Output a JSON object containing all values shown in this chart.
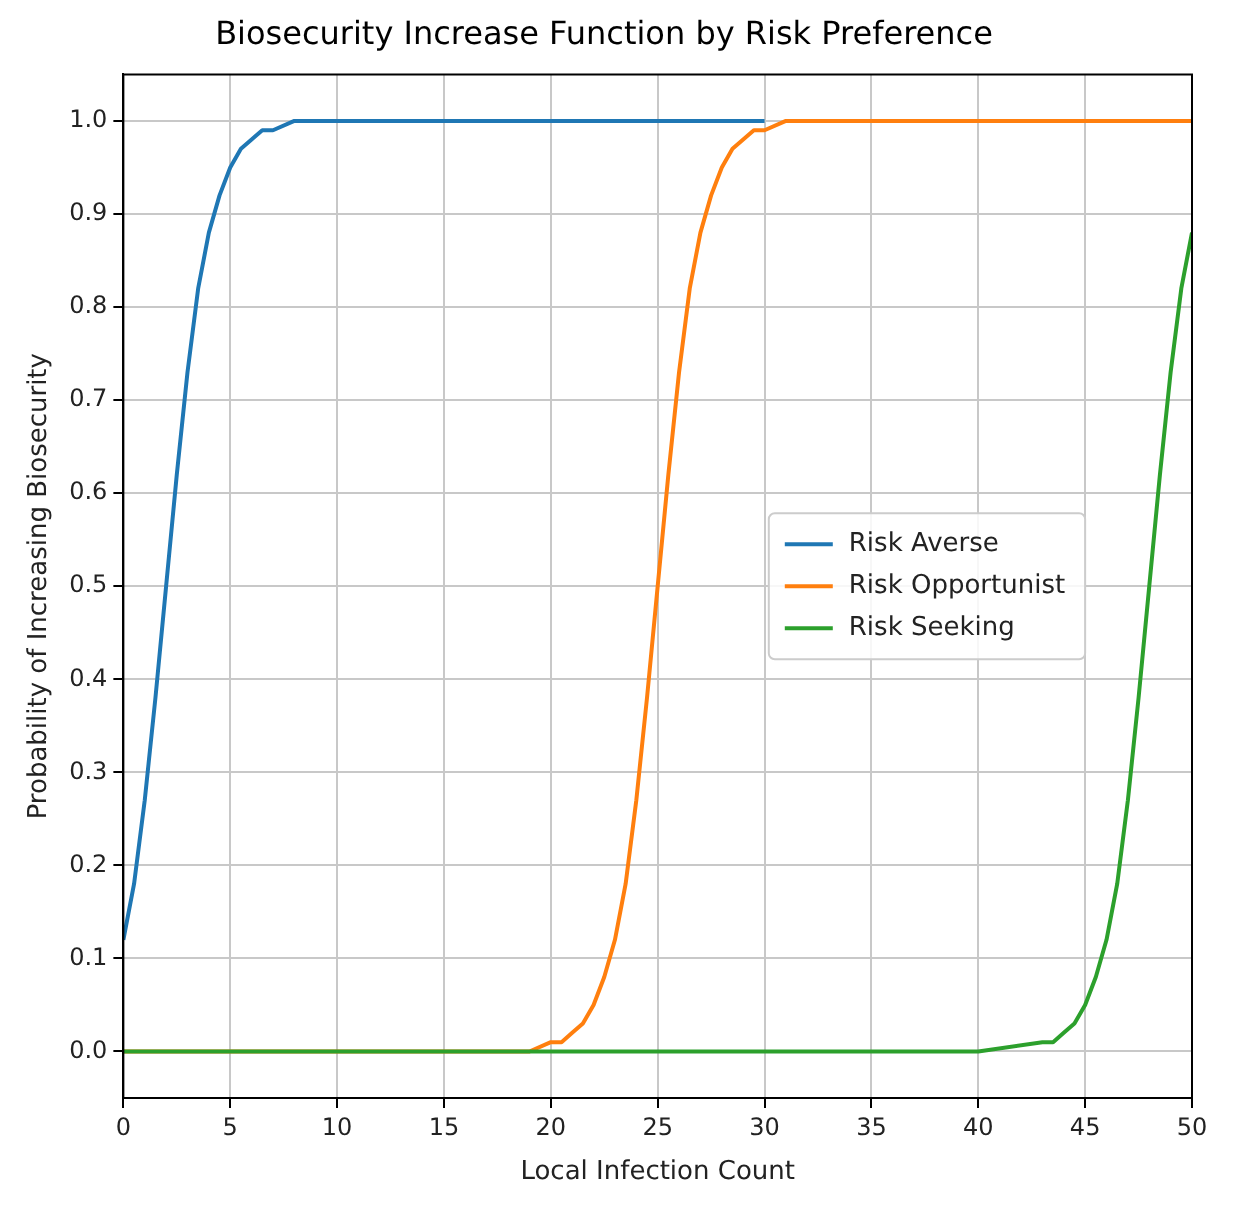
{
  "chart_data": {
    "type": "line",
    "title": "Biosecurity Increase Function by Risk Preference",
    "xlabel": "Local Infection Count",
    "ylabel": "Probability of Increasing Biosecurity",
    "xlim": [
      0,
      50
    ],
    "xticks": [
      0,
      5,
      10,
      15,
      20,
      25,
      30,
      35,
      40,
      45,
      50
    ],
    "ylim": [
      -0.05,
      1.05
    ],
    "yticks": [
      {
        "value": 0,
        "label": "0.0"
      },
      {
        "value": 0.1,
        "label": "0.1"
      },
      {
        "value": 0.2,
        "label": "0.2"
      },
      {
        "value": 0.3,
        "label": "0.3"
      },
      {
        "value": 0.4,
        "label": "0.4"
      },
      {
        "value": 0.5,
        "label": "0.5"
      },
      {
        "value": 0.6,
        "label": "0.6"
      },
      {
        "value": 0.7,
        "label": "0.7"
      },
      {
        "value": 0.8,
        "label": "0.8"
      },
      {
        "value": 0.9,
        "label": "0.9"
      },
      {
        "value": 1,
        "label": "1.0"
      }
    ],
    "grid": true,
    "legend": "right",
    "marker": "none",
    "line_style": "solid",
    "series": [
      {
        "name": "Risk Averse",
        "color": "#1f77b4",
        "x": [
          0,
          0.5,
          1,
          1.5,
          2,
          2.5,
          3,
          3.5,
          4,
          4.5,
          5,
          5.5,
          6,
          6.5,
          7,
          8,
          10,
          30
        ],
        "values": [
          0.12,
          0.18,
          0.27,
          0.38,
          0.5,
          0.62,
          0.73,
          0.82,
          0.88,
          0.92,
          0.95,
          0.97,
          0.98,
          0.99,
          0.99,
          1,
          1,
          1
        ]
      },
      {
        "name": "Risk Opportunist",
        "color": "#ff7f0e",
        "x": [
          0,
          15,
          19,
          20,
          20.5,
          21,
          21.5,
          22,
          22.5,
          23,
          23.5,
          24,
          24.5,
          25,
          25.5,
          26,
          26.5,
          27,
          27.5,
          28,
          28.5,
          29,
          29.5,
          30,
          31,
          32,
          35,
          50
        ],
        "values": [
          0,
          0,
          0,
          0.01,
          0.01,
          0.02,
          0.03,
          0.05,
          0.08,
          0.12,
          0.18,
          0.27,
          0.38,
          0.5,
          0.62,
          0.73,
          0.82,
          0.88,
          0.92,
          0.95,
          0.97,
          0.98,
          0.99,
          0.99,
          1,
          1,
          1,
          1
        ]
      },
      {
        "name": "Risk Seeking",
        "color": "#2ca02c",
        "x": [
          0,
          40,
          43,
          43.5,
          44,
          44.5,
          45,
          45.5,
          46,
          46.5,
          47,
          47.5,
          48,
          48.5,
          49,
          49.5,
          50
        ],
        "values": [
          0,
          0,
          0.01,
          0.01,
          0.02,
          0.03,
          0.05,
          0.08,
          0.12,
          0.18,
          0.27,
          0.38,
          0.5,
          0.62,
          0.73,
          0.82,
          0.88
        ]
      }
    ]
  }
}
